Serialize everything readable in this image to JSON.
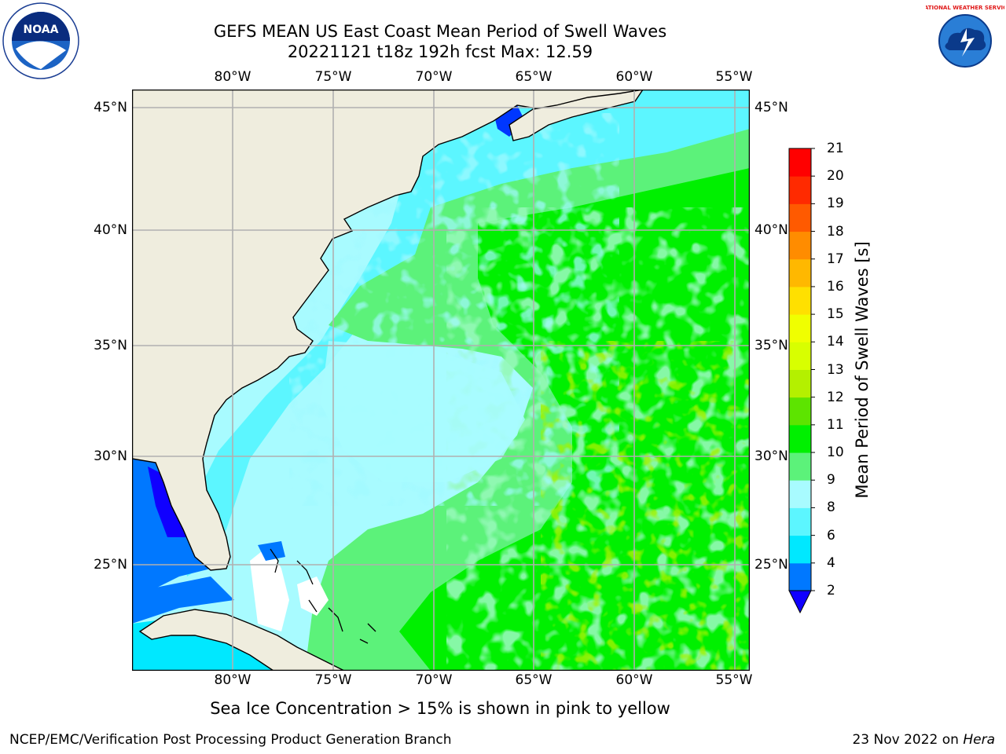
{
  "title_line1": "GEFS MEAN US East Coast Mean Period of Swell Waves",
  "title_line2": "20221121 t18z 192h fcst   Max: 12.59",
  "note": "Sea Ice Concentration > 15% is shown in pink to yellow",
  "footer_left": "NCEP/EMC/Verification Post Processing Product Generation Branch",
  "footer_date": "23 Nov 2022 on",
  "footer_host": "Hera",
  "logos": {
    "left": "NOAA",
    "right": "NATIONAL WEATHER SERVICE"
  },
  "map": {
    "longitude_labels": [
      "80°W",
      "75°W",
      "70°W",
      "65°W",
      "60°W",
      "55°W"
    ],
    "latitude_labels": [
      "45°N",
      "40°N",
      "35°N",
      "30°N",
      "25°N"
    ],
    "land_color": "#efedde",
    "grid_color": "#b0b0b0"
  },
  "colorbar": {
    "title": "Mean Period of Swell Waves [s]",
    "tick_labels": [
      "2",
      "4",
      "6",
      "8",
      "9",
      "10",
      "11",
      "12",
      "13",
      "14",
      "15",
      "16",
      "17",
      "18",
      "19",
      "20",
      "21"
    ],
    "colors": [
      "#0037ff",
      "#0078ff",
      "#00e8ff",
      "#5cf6ff",
      "#a8fbff",
      "#5cf27a",
      "#00f000",
      "#5de400",
      "#b4f000",
      "#d8ff00",
      "#f0ff00",
      "#ffe000",
      "#ffb800",
      "#ff8c00",
      "#ff5a00",
      "#ff2a00",
      "#ff0000"
    ],
    "under_color": "#1000ff"
  }
}
